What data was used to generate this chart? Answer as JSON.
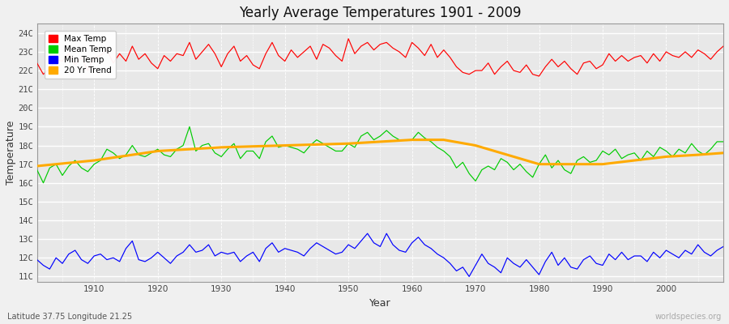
{
  "title": "Yearly Average Temperatures 1901 - 2009",
  "xlabel": "Year",
  "ylabel": "Temperature",
  "footnote_left": "Latitude 37.75 Longitude 21.25",
  "footnote_right": "worldspecies.org",
  "years_start": 1901,
  "years_end": 2009,
  "yticks": [
    11,
    12,
    13,
    14,
    15,
    16,
    17,
    18,
    19,
    20,
    21,
    22,
    23,
    24
  ],
  "ytick_labels": [
    "11C",
    "12C",
    "13C",
    "14C",
    "15C",
    "16C",
    "17C",
    "18C",
    "19C",
    "20C",
    "21C",
    "22C",
    "23C",
    "24C"
  ],
  "ylim": [
    10.7,
    24.5
  ],
  "xticks": [
    1910,
    1920,
    1930,
    1940,
    1950,
    1960,
    1970,
    1980,
    1990,
    2000
  ],
  "xlim": [
    1901,
    2009
  ],
  "colors": {
    "max": "#ff0000",
    "mean": "#00cc00",
    "min": "#0000ff",
    "trend": "#ffaa00",
    "fig_bg": "#f0f0f0",
    "plot_bg": "#e8e8e8",
    "grid_major": "#ffffff",
    "grid_minor": "#d8d8d8"
  },
  "legend": [
    {
      "label": "Max Temp",
      "color": "#ff0000"
    },
    {
      "label": "Mean Temp",
      "color": "#00cc00"
    },
    {
      "label": "Min Temp",
      "color": "#0000ff"
    },
    {
      "label": "20 Yr Trend",
      "color": "#ffaa00"
    }
  ],
  "max_temps": [
    22.4,
    21.8,
    22.1,
    22.6,
    22.5,
    22.9,
    22.3,
    22.7,
    22.0,
    22.7,
    22.8,
    23.1,
    22.4,
    22.9,
    22.5,
    23.3,
    22.6,
    22.9,
    22.4,
    22.1,
    22.8,
    22.5,
    22.9,
    22.8,
    23.5,
    22.6,
    23.0,
    23.4,
    22.9,
    22.2,
    22.9,
    23.3,
    22.5,
    22.8,
    22.3,
    22.1,
    22.9,
    23.5,
    22.8,
    22.5,
    23.1,
    22.7,
    23.0,
    23.3,
    22.6,
    23.4,
    23.2,
    22.8,
    22.5,
    23.7,
    22.9,
    23.3,
    23.5,
    23.1,
    23.4,
    23.5,
    23.2,
    23.0,
    22.7,
    23.5,
    23.2,
    22.8,
    23.4,
    22.7,
    23.1,
    22.7,
    22.2,
    21.9,
    21.8,
    22.0,
    22.0,
    22.4,
    21.8,
    22.2,
    22.5,
    22.0,
    21.9,
    22.3,
    21.8,
    21.7,
    22.2,
    22.6,
    22.2,
    22.5,
    22.1,
    21.8,
    22.4,
    22.5,
    22.1,
    22.3,
    22.9,
    22.5,
    22.8,
    22.5,
    22.7,
    22.8,
    22.4,
    22.9,
    22.5,
    23.0,
    22.8,
    22.7,
    23.0,
    22.7,
    23.1,
    22.9,
    22.6,
    23.0,
    23.3
  ],
  "mean_temps": [
    16.7,
    16.0,
    16.8,
    17.0,
    16.4,
    16.9,
    17.2,
    16.8,
    16.6,
    17.0,
    17.2,
    17.8,
    17.6,
    17.3,
    17.5,
    18.0,
    17.5,
    17.4,
    17.6,
    17.8,
    17.5,
    17.4,
    17.8,
    18.0,
    19.0,
    17.7,
    18.0,
    18.1,
    17.6,
    17.4,
    17.8,
    18.1,
    17.3,
    17.7,
    17.7,
    17.3,
    18.2,
    18.5,
    17.9,
    18.0,
    17.9,
    17.8,
    17.6,
    18.0,
    18.3,
    18.1,
    17.9,
    17.7,
    17.7,
    18.1,
    17.9,
    18.5,
    18.7,
    18.3,
    18.5,
    18.8,
    18.5,
    18.3,
    18.3,
    18.3,
    18.7,
    18.4,
    18.2,
    17.9,
    17.7,
    17.4,
    16.8,
    17.1,
    16.5,
    16.1,
    16.7,
    16.9,
    16.7,
    17.3,
    17.1,
    16.7,
    17.0,
    16.6,
    16.3,
    17.0,
    17.5,
    16.8,
    17.2,
    16.7,
    16.5,
    17.2,
    17.4,
    17.1,
    17.2,
    17.7,
    17.5,
    17.8,
    17.3,
    17.5,
    17.6,
    17.2,
    17.7,
    17.4,
    17.9,
    17.7,
    17.4,
    17.8,
    17.6,
    18.1,
    17.7,
    17.5,
    17.8,
    18.2,
    18.2
  ],
  "min_temps": [
    11.9,
    11.6,
    11.4,
    12.0,
    11.7,
    12.2,
    12.4,
    11.9,
    11.7,
    12.1,
    12.2,
    11.9,
    12.0,
    11.8,
    12.5,
    12.9,
    11.9,
    11.8,
    12.0,
    12.3,
    12.0,
    11.7,
    12.1,
    12.3,
    12.7,
    12.3,
    12.4,
    12.7,
    12.1,
    12.3,
    12.2,
    12.3,
    11.8,
    12.1,
    12.3,
    11.8,
    12.5,
    12.8,
    12.3,
    12.5,
    12.4,
    12.3,
    12.1,
    12.5,
    12.8,
    12.6,
    12.4,
    12.2,
    12.3,
    12.7,
    12.5,
    12.9,
    13.3,
    12.8,
    12.6,
    13.3,
    12.7,
    12.4,
    12.3,
    12.8,
    13.1,
    12.7,
    12.5,
    12.2,
    12.0,
    11.7,
    11.3,
    11.5,
    11.0,
    11.6,
    12.2,
    11.7,
    11.5,
    11.2,
    12.0,
    11.7,
    11.5,
    11.9,
    11.5,
    11.1,
    11.8,
    12.3,
    11.6,
    12.0,
    11.5,
    11.4,
    11.9,
    12.1,
    11.7,
    11.6,
    12.2,
    11.9,
    12.3,
    11.9,
    12.1,
    12.1,
    11.8,
    12.3,
    12.0,
    12.4,
    12.2,
    12.0,
    12.4,
    12.2,
    12.7,
    12.3,
    12.1,
    12.4,
    12.6
  ],
  "trend_years": [
    1901,
    1910,
    1920,
    1930,
    1940,
    1950,
    1955,
    1960,
    1965,
    1970,
    1975,
    1980,
    1985,
    1990,
    1995,
    2000,
    2005,
    2009
  ],
  "trend_vals": [
    16.9,
    17.2,
    17.7,
    17.9,
    18.0,
    18.1,
    18.2,
    18.3,
    18.3,
    18.0,
    17.5,
    17.0,
    17.0,
    17.0,
    17.2,
    17.4,
    17.5,
    17.6
  ]
}
